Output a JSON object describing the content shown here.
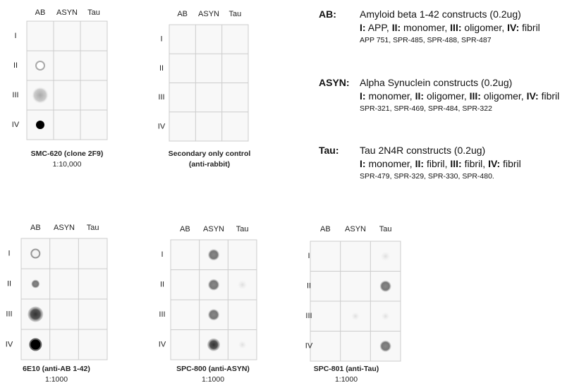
{
  "blots": [
    {
      "columns": [
        "AB",
        "ASYN",
        "Tau"
      ],
      "rows": [
        "I",
        "II",
        "III",
        "IV"
      ],
      "caption": [
        "SMC-620 (clone 2F9)",
        "1:10,000"
      ]
    },
    {
      "columns": [
        "AB",
        "ASYN",
        "Tau"
      ],
      "rows": [
        "I",
        "II",
        "III",
        "IV"
      ],
      "caption": [
        "Secondary only control",
        "(anti-rabbit)"
      ]
    },
    {
      "columns": [
        "AB",
        "ASYN",
        "Tau"
      ],
      "rows": [
        "I",
        "II",
        "III",
        "IV"
      ],
      "caption": [
        "6E10 (anti-AB 1-42)",
        "1:1000"
      ]
    },
    {
      "columns": [
        "AB",
        "ASYN",
        "Tau"
      ],
      "rows": [
        "I",
        "II",
        "III",
        "IV"
      ],
      "caption": [
        "SPC-800 (anti-ASYN)",
        "1:1000"
      ]
    },
    {
      "columns": [
        "AB",
        "ASYN",
        "Tau"
      ],
      "rows": [
        "I",
        "II",
        "III",
        "IV"
      ],
      "caption": [
        "SPC-801 (anti-Tau)",
        "1:1000"
      ]
    }
  ],
  "legend": [
    {
      "key": "AB:",
      "title": "Amyloid beta 1-42 constructs (0.2ug)",
      "items": [
        {
          "label": "I:",
          "text": "APP,"
        },
        {
          "label": "II:",
          "text": "monomer,"
        },
        {
          "label": "III:",
          "text": "oligomer,"
        },
        {
          "label": "IV:",
          "text": "fibril"
        }
      ],
      "codes": "APP 751, SPR-485, SPR-488, SPR-487"
    },
    {
      "key": "ASYN:",
      "title": "Alpha Synuclein constructs (0.2ug)",
      "items": [
        {
          "label": "I:",
          "text": "monomer,"
        },
        {
          "label": "II:",
          "text": "oligomer,"
        },
        {
          "label": "III:",
          "text": "oligomer,"
        },
        {
          "label": "IV:",
          "text": "fibril"
        }
      ],
      "codes": "SPR-321, SPR-469, SPR-484, SPR-322"
    },
    {
      "key": "Tau:",
      "title": "Tau 2N4R constructs (0.2ug)",
      "items": [
        {
          "label": "I:",
          "text": "monomer,"
        },
        {
          "label": "II:",
          "text": "fibril,"
        },
        {
          "label": "III:",
          "text": "fibril,"
        },
        {
          "label": "IV:",
          "text": "fibril"
        }
      ],
      "codes": "SPR-479, SPR-329, SPR-330, SPR-480."
    }
  ]
}
